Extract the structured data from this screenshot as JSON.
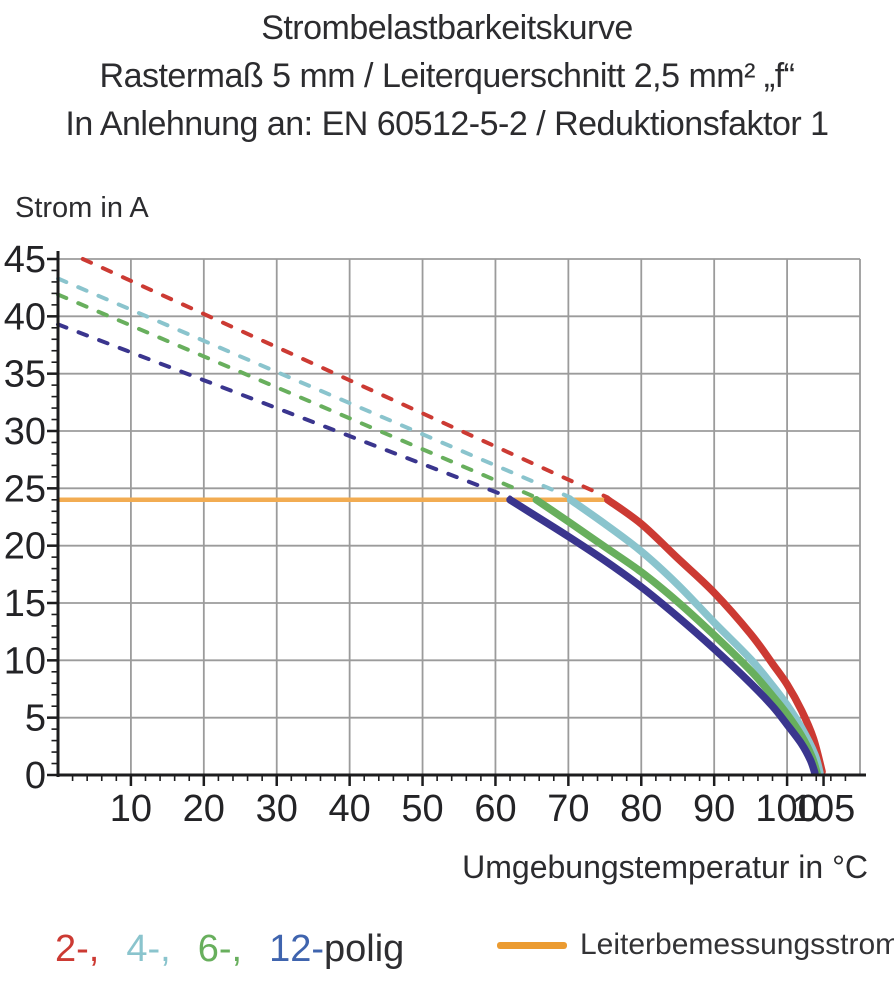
{
  "title": {
    "line1": "Strombelastbarkeitskurve",
    "line2": "Rastermaß 5 mm / Leiterquerschnitt 2,5 mm² „f“",
    "line3": "In Anlehnung an: EN 60512-5-2 / Reduktionsfaktor 1"
  },
  "chart_data": {
    "type": "line",
    "title": "Strombelastbarkeitskurve",
    "xlabel": "Umgebungstemperatur in °C",
    "ylabel": "Strom in A",
    "xlim": [
      0,
      110
    ],
    "ylim": [
      0,
      45
    ],
    "x_ticks": [
      10,
      20,
      30,
      40,
      50,
      60,
      70,
      80,
      90,
      100,
      105
    ],
    "y_ticks": [
      0,
      5,
      10,
      15,
      20,
      25,
      30,
      35,
      40,
      45
    ],
    "x_minor_step": 2,
    "y_minor_step": 1,
    "grid": true,
    "grid_color": "#9b9b9b",
    "axis_color": "#1c1c1e",
    "series": [
      {
        "name": "2-polig",
        "poles": 2,
        "color": "#cc3a33",
        "dashed": [
          [
            3.4,
            45
          ],
          [
            75.4,
            24.2
          ]
        ],
        "solid": [
          [
            75.4,
            24
          ],
          [
            80,
            21.9
          ],
          [
            85,
            18.9
          ],
          [
            90,
            15.9
          ],
          [
            95,
            12.3
          ],
          [
            98,
            9.7
          ],
          [
            100,
            7.9
          ],
          [
            102,
            5.6
          ],
          [
            103.6,
            3.2
          ],
          [
            104.8,
            0.3
          ]
        ]
      },
      {
        "name": "4-polig",
        "poles": 4,
        "color": "#8ac4cd",
        "dashed": [
          [
            0,
            43.3
          ],
          [
            70.3,
            24.2
          ]
        ],
        "solid": [
          [
            70.3,
            24
          ],
          [
            75,
            21.9
          ],
          [
            80,
            19.5
          ],
          [
            85,
            16.6
          ],
          [
            90,
            13.3
          ],
          [
            95,
            10.1
          ],
          [
            98,
            7.8
          ],
          [
            100,
            6.1
          ],
          [
            102,
            4.1
          ],
          [
            103.8,
            1.8
          ],
          [
            104.5,
            0.2
          ]
        ]
      },
      {
        "name": "6-polig",
        "poles": 6,
        "color": "#68af5d",
        "dashed": [
          [
            0,
            41.9
          ],
          [
            65.6,
            24.2
          ]
        ],
        "solid": [
          [
            65.6,
            24
          ],
          [
            70,
            22.1
          ],
          [
            75,
            19.9
          ],
          [
            80,
            17.7
          ],
          [
            85,
            15.1
          ],
          [
            90,
            12.2
          ],
          [
            95,
            9.1
          ],
          [
            98,
            6.9
          ],
          [
            100,
            5.3
          ],
          [
            102,
            3.4
          ],
          [
            103.4,
            1.6
          ],
          [
            104.1,
            0.2
          ]
        ]
      },
      {
        "name": "12-polig",
        "poles": 12,
        "color": "#3a358e",
        "dashed": [
          [
            0,
            39.3
          ],
          [
            62,
            24.2
          ]
        ],
        "solid": [
          [
            62,
            24
          ],
          [
            65,
            22.8
          ],
          [
            70,
            20.8
          ],
          [
            75,
            18.7
          ],
          [
            80,
            16.4
          ],
          [
            85,
            13.8
          ],
          [
            90,
            11.0
          ],
          [
            95,
            8.0
          ],
          [
            98,
            6.0
          ],
          [
            100,
            4.4
          ],
          [
            102,
            2.7
          ],
          [
            103.2,
            1.3
          ],
          [
            103.8,
            0.2
          ]
        ]
      }
    ],
    "rated_current_line": {
      "name": "Leiterbemessungsstrom",
      "color": "#f2ac52",
      "value_a": 24,
      "span_c": [
        0,
        75.4
      ]
    }
  },
  "legend": {
    "poles": [
      {
        "label": "2-,",
        "color": "#cc3a33"
      },
      {
        "label": "4-,",
        "color": "#8ac4cd"
      },
      {
        "label": "6-,",
        "color": "#68af5d"
      },
      {
        "label": "12-",
        "color": "#3f64ae"
      },
      {
        "label": "polig",
        "color": "#2e2e31"
      }
    ],
    "rated": {
      "label": "Leiterbemessungsstrom",
      "swatch_color": "#eb9b31"
    }
  }
}
